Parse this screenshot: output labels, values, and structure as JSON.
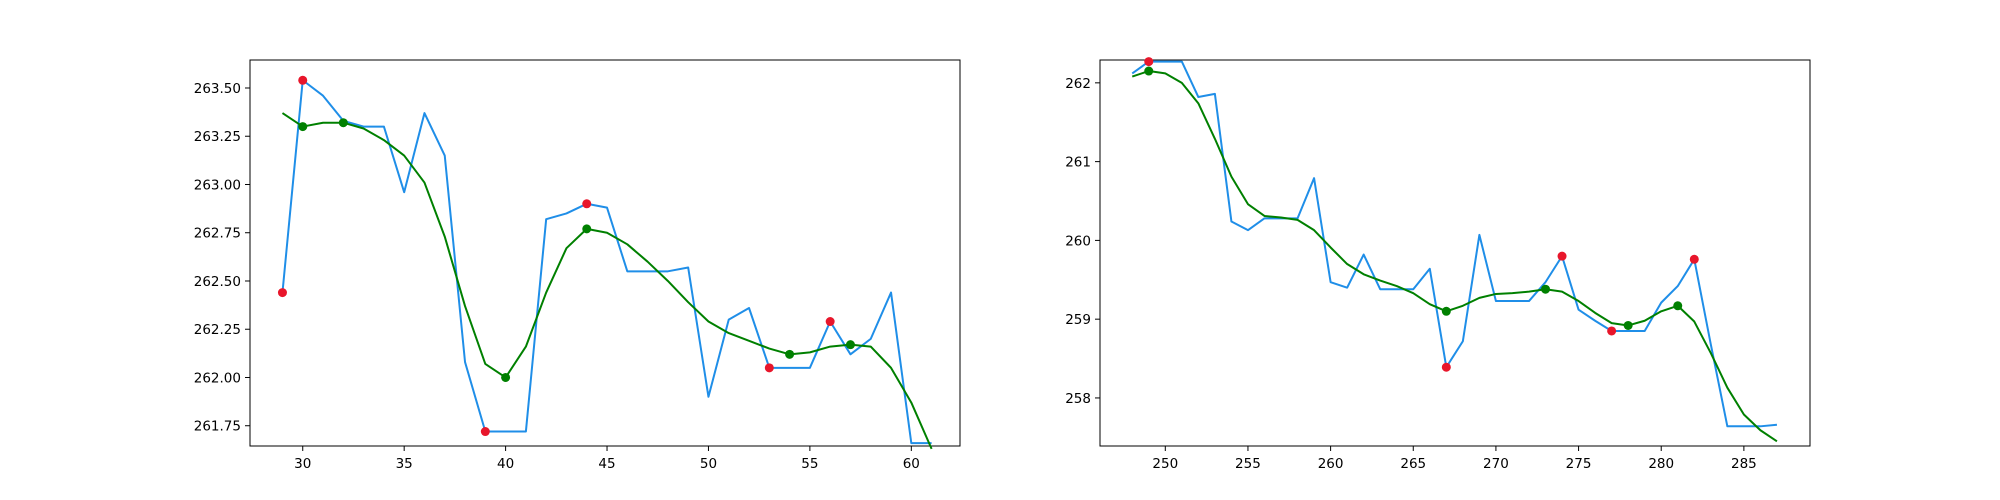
{
  "colors": {
    "raw_line": "#1f8ee8",
    "smooth_line": "#008000",
    "extrema_marker": "#e8162b",
    "smooth_marker": "#008000",
    "axes": "#000000"
  },
  "chart_data": [
    {
      "type": "line",
      "xlim": [
        27.4,
        62.4
      ],
      "ylim": [
        261.645,
        263.645
      ],
      "x_ticks": [
        30,
        35,
        40,
        45,
        50,
        55,
        60
      ],
      "x_tick_labels": [
        "30",
        "35",
        "40",
        "45",
        "50",
        "55",
        "60"
      ],
      "y_ticks": [
        261.75,
        262.0,
        262.25,
        262.5,
        262.75,
        263.0,
        263.25,
        263.5
      ],
      "y_tick_labels": [
        "261.75",
        "262.00",
        "262.25",
        "262.50",
        "262.75",
        "263.00",
        "263.25",
        "263.50"
      ],
      "grid": false,
      "series": [
        {
          "role": "raw",
          "x": [
            29,
            30,
            31,
            32,
            33,
            34,
            35,
            36,
            37,
            38,
            39,
            40,
            41,
            42,
            43,
            44,
            45,
            46,
            47,
            48,
            49,
            50,
            51,
            52,
            53,
            54,
            55,
            56,
            57,
            58,
            59,
            60,
            61
          ],
          "y": [
            262.44,
            263.54,
            263.46,
            263.33,
            263.3,
            263.3,
            262.96,
            263.37,
            263.15,
            262.08,
            261.72,
            261.72,
            261.72,
            262.82,
            262.85,
            262.9,
            262.88,
            262.55,
            262.55,
            262.55,
            262.57,
            261.9,
            262.3,
            262.36,
            262.05,
            262.05,
            262.05,
            262.29,
            262.12,
            262.2,
            262.44,
            261.66,
            261.66
          ]
        },
        {
          "role": "smooth",
          "x": [
            29,
            30,
            31,
            32,
            33,
            34,
            35,
            36,
            37,
            38,
            39,
            40,
            41,
            42,
            43,
            44,
            45,
            46,
            47,
            48,
            49,
            50,
            51,
            52,
            53,
            54,
            55,
            56,
            57,
            58,
            59,
            60,
            61
          ],
          "y": [
            263.37,
            263.3,
            263.32,
            263.32,
            263.29,
            263.23,
            263.15,
            263.01,
            262.73,
            262.37,
            262.07,
            262.0,
            262.16,
            262.44,
            262.67,
            262.77,
            262.75,
            262.69,
            262.6,
            262.5,
            262.39,
            262.29,
            262.23,
            262.19,
            262.15,
            262.12,
            262.13,
            262.16,
            262.17,
            262.16,
            262.05,
            261.87,
            261.63
          ]
        },
        {
          "role": "extrema",
          "x": [
            29,
            30,
            39,
            44,
            53,
            56
          ],
          "y": [
            262.44,
            263.54,
            261.72,
            262.9,
            262.05,
            262.29
          ]
        },
        {
          "role": "smooth_points",
          "x": [
            30,
            32,
            40,
            44,
            54,
            57
          ],
          "y": [
            263.3,
            263.32,
            262.0,
            262.77,
            262.12,
            262.17
          ]
        }
      ]
    },
    {
      "type": "line",
      "xlim": [
        246.05,
        289.0
      ],
      "ylim": [
        257.39,
        262.29
      ],
      "x_ticks": [
        250,
        255,
        260,
        265,
        270,
        275,
        280,
        285
      ],
      "x_tick_labels": [
        "250",
        "255",
        "260",
        "265",
        "270",
        "275",
        "280",
        "285"
      ],
      "y_ticks": [
        258,
        259,
        260,
        261,
        262
      ],
      "y_tick_labels": [
        "258",
        "259",
        "260",
        "261",
        "262"
      ],
      "grid": false,
      "series": [
        {
          "role": "raw",
          "x": [
            248,
            249,
            250,
            251,
            252,
            253,
            254,
            255,
            256,
            257,
            258,
            259,
            260,
            261,
            262,
            263,
            264,
            265,
            266,
            267,
            268,
            269,
            270,
            271,
            272,
            273,
            274,
            275,
            276,
            277,
            278,
            279,
            280,
            281,
            282,
            283,
            284,
            285,
            286,
            287
          ],
          "y": [
            262.12,
            262.27,
            262.27,
            262.27,
            261.82,
            261.86,
            260.24,
            260.13,
            260.28,
            260.28,
            260.28,
            260.79,
            259.47,
            259.4,
            259.82,
            259.38,
            259.38,
            259.38,
            259.64,
            258.39,
            258.72,
            260.07,
            259.23,
            259.23,
            259.23,
            259.47,
            259.8,
            259.12,
            258.98,
            258.85,
            258.85,
            258.85,
            259.21,
            259.42,
            259.76,
            258.68,
            257.64,
            257.64,
            257.64,
            257.66
          ]
        },
        {
          "role": "smooth",
          "x": [
            248,
            249,
            250,
            251,
            252,
            253,
            254,
            255,
            256,
            257,
            258,
            259,
            260,
            261,
            262,
            263,
            264,
            265,
            266,
            267,
            268,
            269,
            270,
            271,
            272,
            273,
            274,
            275,
            276,
            277,
            278,
            279,
            280,
            281,
            282,
            283,
            284,
            285,
            286,
            287
          ],
          "y": [
            262.08,
            262.15,
            262.12,
            262.0,
            261.74,
            261.29,
            260.81,
            260.46,
            260.31,
            260.29,
            260.26,
            260.13,
            259.91,
            259.7,
            259.57,
            259.49,
            259.42,
            259.33,
            259.19,
            259.1,
            259.17,
            259.27,
            259.32,
            259.33,
            259.35,
            259.38,
            259.35,
            259.23,
            259.08,
            258.95,
            258.92,
            258.98,
            259.1,
            259.17,
            258.97,
            258.57,
            258.13,
            257.79,
            257.59,
            257.45
          ]
        },
        {
          "role": "extrema",
          "x": [
            249,
            267,
            274,
            277,
            282
          ],
          "y": [
            262.27,
            258.39,
            259.8,
            258.85,
            259.76
          ]
        },
        {
          "role": "smooth_points",
          "x": [
            249,
            267,
            273,
            278,
            281
          ],
          "y": [
            262.15,
            259.1,
            259.38,
            258.92,
            259.17
          ]
        }
      ]
    }
  ]
}
